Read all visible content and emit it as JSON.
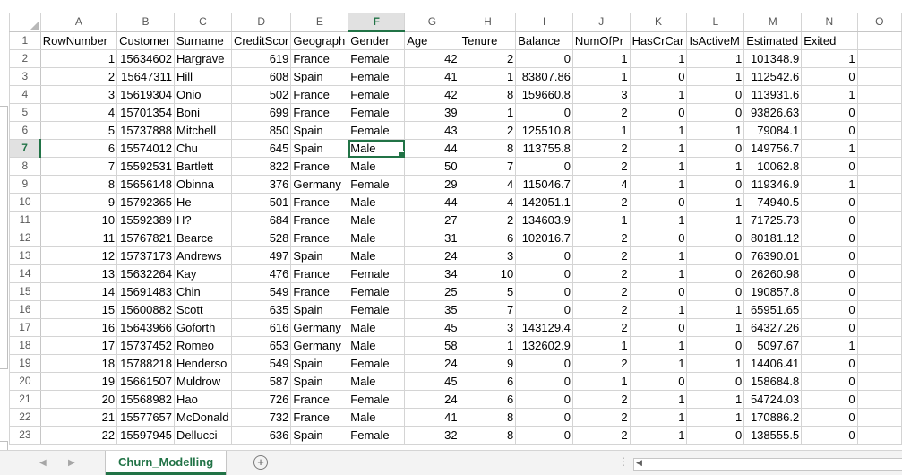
{
  "columns": [
    "A",
    "B",
    "C",
    "D",
    "E",
    "F",
    "G",
    "H",
    "I",
    "J",
    "K",
    "L",
    "M",
    "N",
    "O"
  ],
  "active_column": "F",
  "active_row": 7,
  "selected_cell": "F7",
  "row_numbers": [
    1,
    2,
    3,
    4,
    5,
    6,
    7,
    8,
    9,
    10,
    11,
    12,
    13,
    14,
    15,
    16,
    17,
    18,
    19,
    20,
    21,
    22,
    23
  ],
  "rows": [
    [
      "RowNumber",
      "Customer",
      "Surname",
      "CreditScor",
      "Geograph",
      "Gender",
      "Age",
      "Tenure",
      "Balance",
      "NumOfPr",
      "HasCrCar",
      "IsActiveM",
      "Estimated",
      "Exited",
      ""
    ],
    [
      "1",
      "15634602",
      "Hargrave",
      "619",
      "France",
      "Female",
      "42",
      "2",
      "0",
      "1",
      "1",
      "1",
      "101348.9",
      "1",
      ""
    ],
    [
      "2",
      "15647311",
      "Hill",
      "608",
      "Spain",
      "Female",
      "41",
      "1",
      "83807.86",
      "1",
      "0",
      "1",
      "112542.6",
      "0",
      ""
    ],
    [
      "3",
      "15619304",
      "Onio",
      "502",
      "France",
      "Female",
      "42",
      "8",
      "159660.8",
      "3",
      "1",
      "0",
      "113931.6",
      "1",
      ""
    ],
    [
      "4",
      "15701354",
      "Boni",
      "699",
      "France",
      "Female",
      "39",
      "1",
      "0",
      "2",
      "0",
      "0",
      "93826.63",
      "0",
      ""
    ],
    [
      "5",
      "15737888",
      "Mitchell",
      "850",
      "Spain",
      "Female",
      "43",
      "2",
      "125510.8",
      "1",
      "1",
      "1",
      "79084.1",
      "0",
      ""
    ],
    [
      "6",
      "15574012",
      "Chu",
      "645",
      "Spain",
      "Male",
      "44",
      "8",
      "113755.8",
      "2",
      "1",
      "0",
      "149756.7",
      "1",
      ""
    ],
    [
      "7",
      "15592531",
      "Bartlett",
      "822",
      "France",
      "Male",
      "50",
      "7",
      "0",
      "2",
      "1",
      "1",
      "10062.8",
      "0",
      ""
    ],
    [
      "8",
      "15656148",
      "Obinna",
      "376",
      "Germany",
      "Female",
      "29",
      "4",
      "115046.7",
      "4",
      "1",
      "0",
      "119346.9",
      "1",
      ""
    ],
    [
      "9",
      "15792365",
      "He",
      "501",
      "France",
      "Male",
      "44",
      "4",
      "142051.1",
      "2",
      "0",
      "1",
      "74940.5",
      "0",
      ""
    ],
    [
      "10",
      "15592389",
      "H?",
      "684",
      "France",
      "Male",
      "27",
      "2",
      "134603.9",
      "1",
      "1",
      "1",
      "71725.73",
      "0",
      ""
    ],
    [
      "11",
      "15767821",
      "Bearce",
      "528",
      "France",
      "Male",
      "31",
      "6",
      "102016.7",
      "2",
      "0",
      "0",
      "80181.12",
      "0",
      ""
    ],
    [
      "12",
      "15737173",
      "Andrews",
      "497",
      "Spain",
      "Male",
      "24",
      "3",
      "0",
      "2",
      "1",
      "0",
      "76390.01",
      "0",
      ""
    ],
    [
      "13",
      "15632264",
      "Kay",
      "476",
      "France",
      "Female",
      "34",
      "10",
      "0",
      "2",
      "1",
      "0",
      "26260.98",
      "0",
      ""
    ],
    [
      "14",
      "15691483",
      "Chin",
      "549",
      "France",
      "Female",
      "25",
      "5",
      "0",
      "2",
      "0",
      "0",
      "190857.8",
      "0",
      ""
    ],
    [
      "15",
      "15600882",
      "Scott",
      "635",
      "Spain",
      "Female",
      "35",
      "7",
      "0",
      "2",
      "1",
      "1",
      "65951.65",
      "0",
      ""
    ],
    [
      "16",
      "15643966",
      "Goforth",
      "616",
      "Germany",
      "Male",
      "45",
      "3",
      "143129.4",
      "2",
      "0",
      "1",
      "64327.26",
      "0",
      ""
    ],
    [
      "17",
      "15737452",
      "Romeo",
      "653",
      "Germany",
      "Male",
      "58",
      "1",
      "132602.9",
      "1",
      "1",
      "0",
      "5097.67",
      "1",
      ""
    ],
    [
      "18",
      "15788218",
      "Henderso",
      "549",
      "Spain",
      "Female",
      "24",
      "9",
      "0",
      "2",
      "1",
      "1",
      "14406.41",
      "0",
      ""
    ],
    [
      "19",
      "15661507",
      "Muldrow",
      "587",
      "Spain",
      "Male",
      "45",
      "6",
      "0",
      "1",
      "0",
      "0",
      "158684.8",
      "0",
      ""
    ],
    [
      "20",
      "15568982",
      "Hao",
      "726",
      "France",
      "Female",
      "24",
      "6",
      "0",
      "2",
      "1",
      "1",
      "54724.03",
      "0",
      ""
    ],
    [
      "21",
      "15577657",
      "McDonald",
      "732",
      "France",
      "Male",
      "41",
      "8",
      "0",
      "2",
      "1",
      "1",
      "170886.2",
      "0",
      ""
    ],
    [
      "22",
      "15597945",
      "Dellucci",
      "636",
      "Spain",
      "Female",
      "32",
      "8",
      "0",
      "2",
      "1",
      "0",
      "138555.5",
      "0",
      ""
    ]
  ],
  "sheet_tab": "Churn_Modelling",
  "add_sheet_symbol": "+",
  "nav_prev": "◀",
  "nav_next": "▶",
  "scroll_dots": "⋮",
  "scroll_arrow": "◀"
}
